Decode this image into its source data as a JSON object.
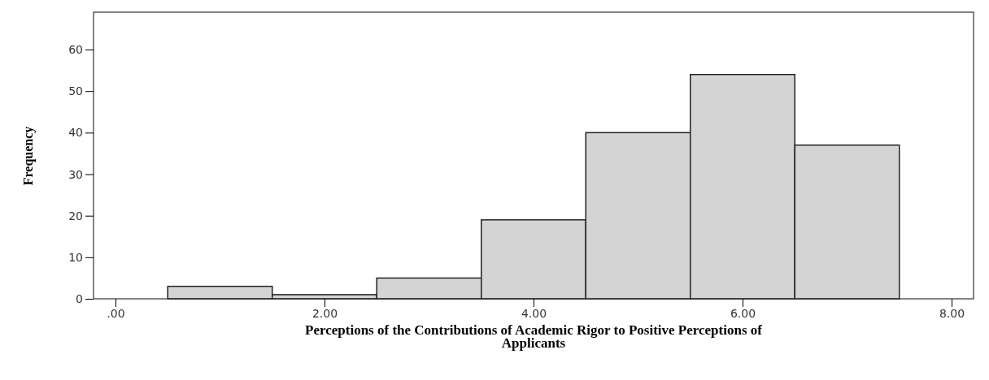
{
  "chart_data": {
    "type": "histogram",
    "xlabel": "Perceptions of the Contributions of Academic Rigor to Positive Perceptions of Applicants",
    "ylabel": "Frequency",
    "bins": [
      0.5,
      1.5,
      2.5,
      3.5,
      4.5,
      5.5,
      6.5,
      7.5
    ],
    "values": [
      3,
      1,
      5,
      19,
      40,
      54,
      37
    ],
    "color": "#d4d4d4",
    "xlim": [
      -0.21,
      8.21
    ],
    "xticks": [
      {
        "value": 0,
        "label": ".00"
      },
      {
        "value": 2,
        "label": "2.00"
      },
      {
        "value": 4,
        "label": "4.00"
      },
      {
        "value": 6,
        "label": "6.00"
      },
      {
        "value": 8,
        "label": "8.00"
      }
    ],
    "ylim": [
      0,
      69
    ],
    "yticks": [
      0,
      10,
      20,
      30,
      40,
      50,
      60
    ],
    "grid": false
  }
}
